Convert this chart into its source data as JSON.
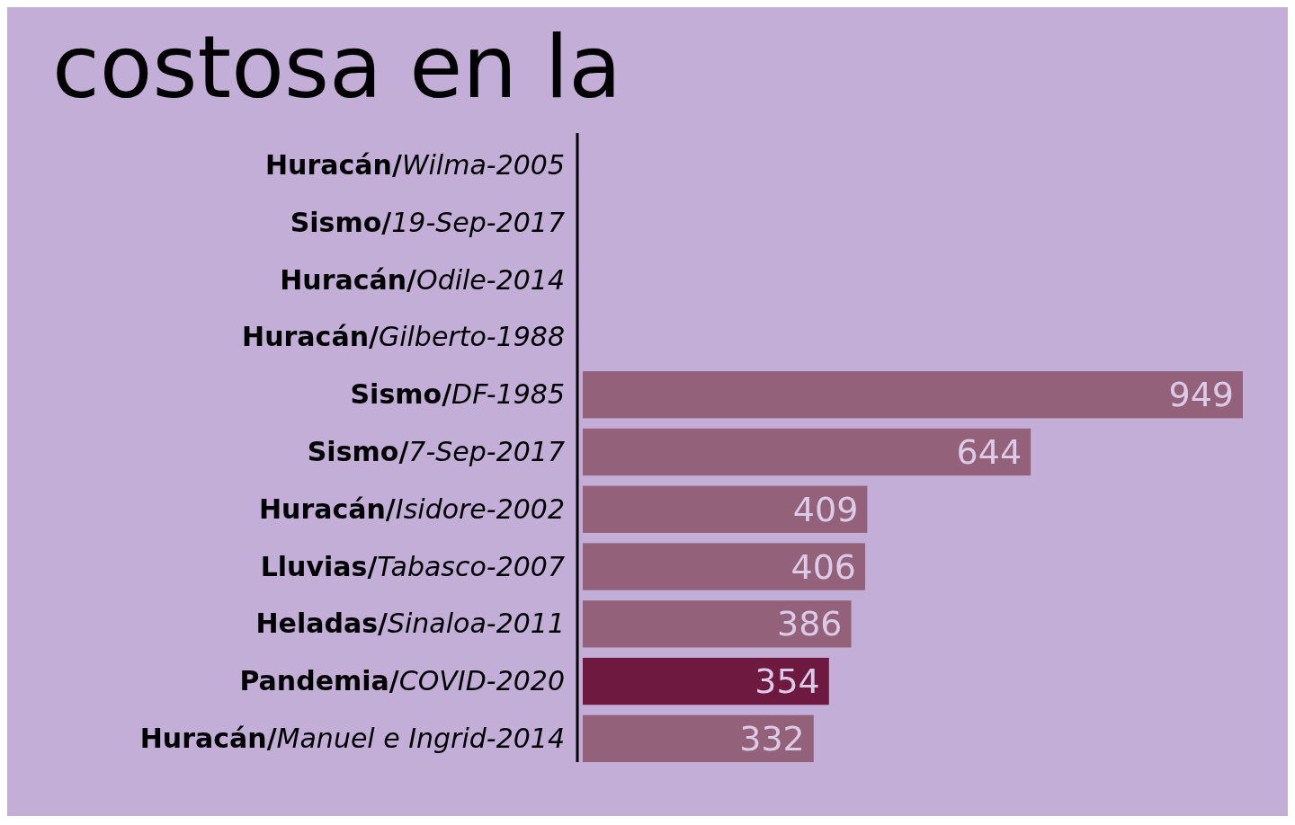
{
  "chart_data": {
    "type": "bar",
    "orientation": "horizontal",
    "title": "costosa en la",
    "categories": [
      "Huracán/Wilma-2005",
      "Sismo/19-Sep-2017",
      "Huracán/Odile-2014",
      "Huracán/Gilberto-1988",
      "Sismo/DF-1985",
      "Sismo/7-Sep-2017",
      "Huracán/Isidore-2002",
      "Lluvias/Tabasco-2007",
      "Heladas/Sinaloa-2011",
      "Pandemia/COVID-2020",
      "Huracán/Manuel e Ingrid-2014"
    ],
    "values": [
      null,
      null,
      null,
      null,
      949,
      644,
      409,
      406,
      386,
      354,
      332
    ],
    "colors": [
      null,
      null,
      null,
      null,
      "#93627a",
      "#93627a",
      "#93627a",
      "#93627a",
      "#93627a",
      "#6e1a40",
      "#93627a"
    ],
    "data_labels": true
  }
}
